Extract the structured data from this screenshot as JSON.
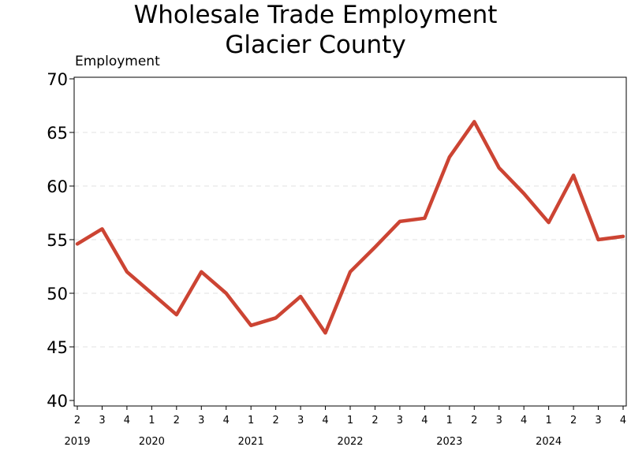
{
  "chart_data": {
    "type": "line",
    "title": "Wholesale Trade Employment",
    "subtitle": "Glacier County",
    "ylabel": "Employment",
    "xlabel": "",
    "ylim": [
      40,
      70
    ],
    "yticks": [
      40,
      45,
      50,
      55,
      60,
      65,
      70
    ],
    "grid": "horizontal dashed",
    "series_color": "#cc4433",
    "x": [
      "2019 Q2",
      "2019 Q3",
      "2019 Q4",
      "2020 Q1",
      "2020 Q2",
      "2020 Q3",
      "2020 Q4",
      "2021 Q1",
      "2021 Q2",
      "2021 Q3",
      "2021 Q4",
      "2022 Q1",
      "2022 Q2",
      "2022 Q3",
      "2022 Q4",
      "2023 Q1",
      "2023 Q2",
      "2023 Q3",
      "2023 Q4",
      "2024 Q1",
      "2024 Q2",
      "2024 Q3",
      "2024 Q4"
    ],
    "quarter_labels": [
      "2",
      "3",
      "4",
      "1",
      "2",
      "3",
      "4",
      "1",
      "2",
      "3",
      "4",
      "1",
      "2",
      "3",
      "4",
      "1",
      "2",
      "3",
      "4",
      "1",
      "2",
      "3",
      "4"
    ],
    "year_labels": [
      {
        "label": "2019",
        "index": 0
      },
      {
        "label": "2020",
        "index": 3
      },
      {
        "label": "2021",
        "index": 7
      },
      {
        "label": "2022",
        "index": 11
      },
      {
        "label": "2023",
        "index": 15
      },
      {
        "label": "2024",
        "index": 19
      }
    ],
    "series": [
      {
        "values": [
          54.6,
          56.0,
          52.0,
          50.0,
          48.0,
          52.0,
          50.0,
          47.0,
          47.7,
          49.7,
          46.3,
          52.0,
          54.3,
          56.7,
          57.0,
          62.7,
          66.0,
          61.7,
          59.3,
          56.6,
          61.0,
          55.0,
          55.3
        ]
      }
    ]
  }
}
